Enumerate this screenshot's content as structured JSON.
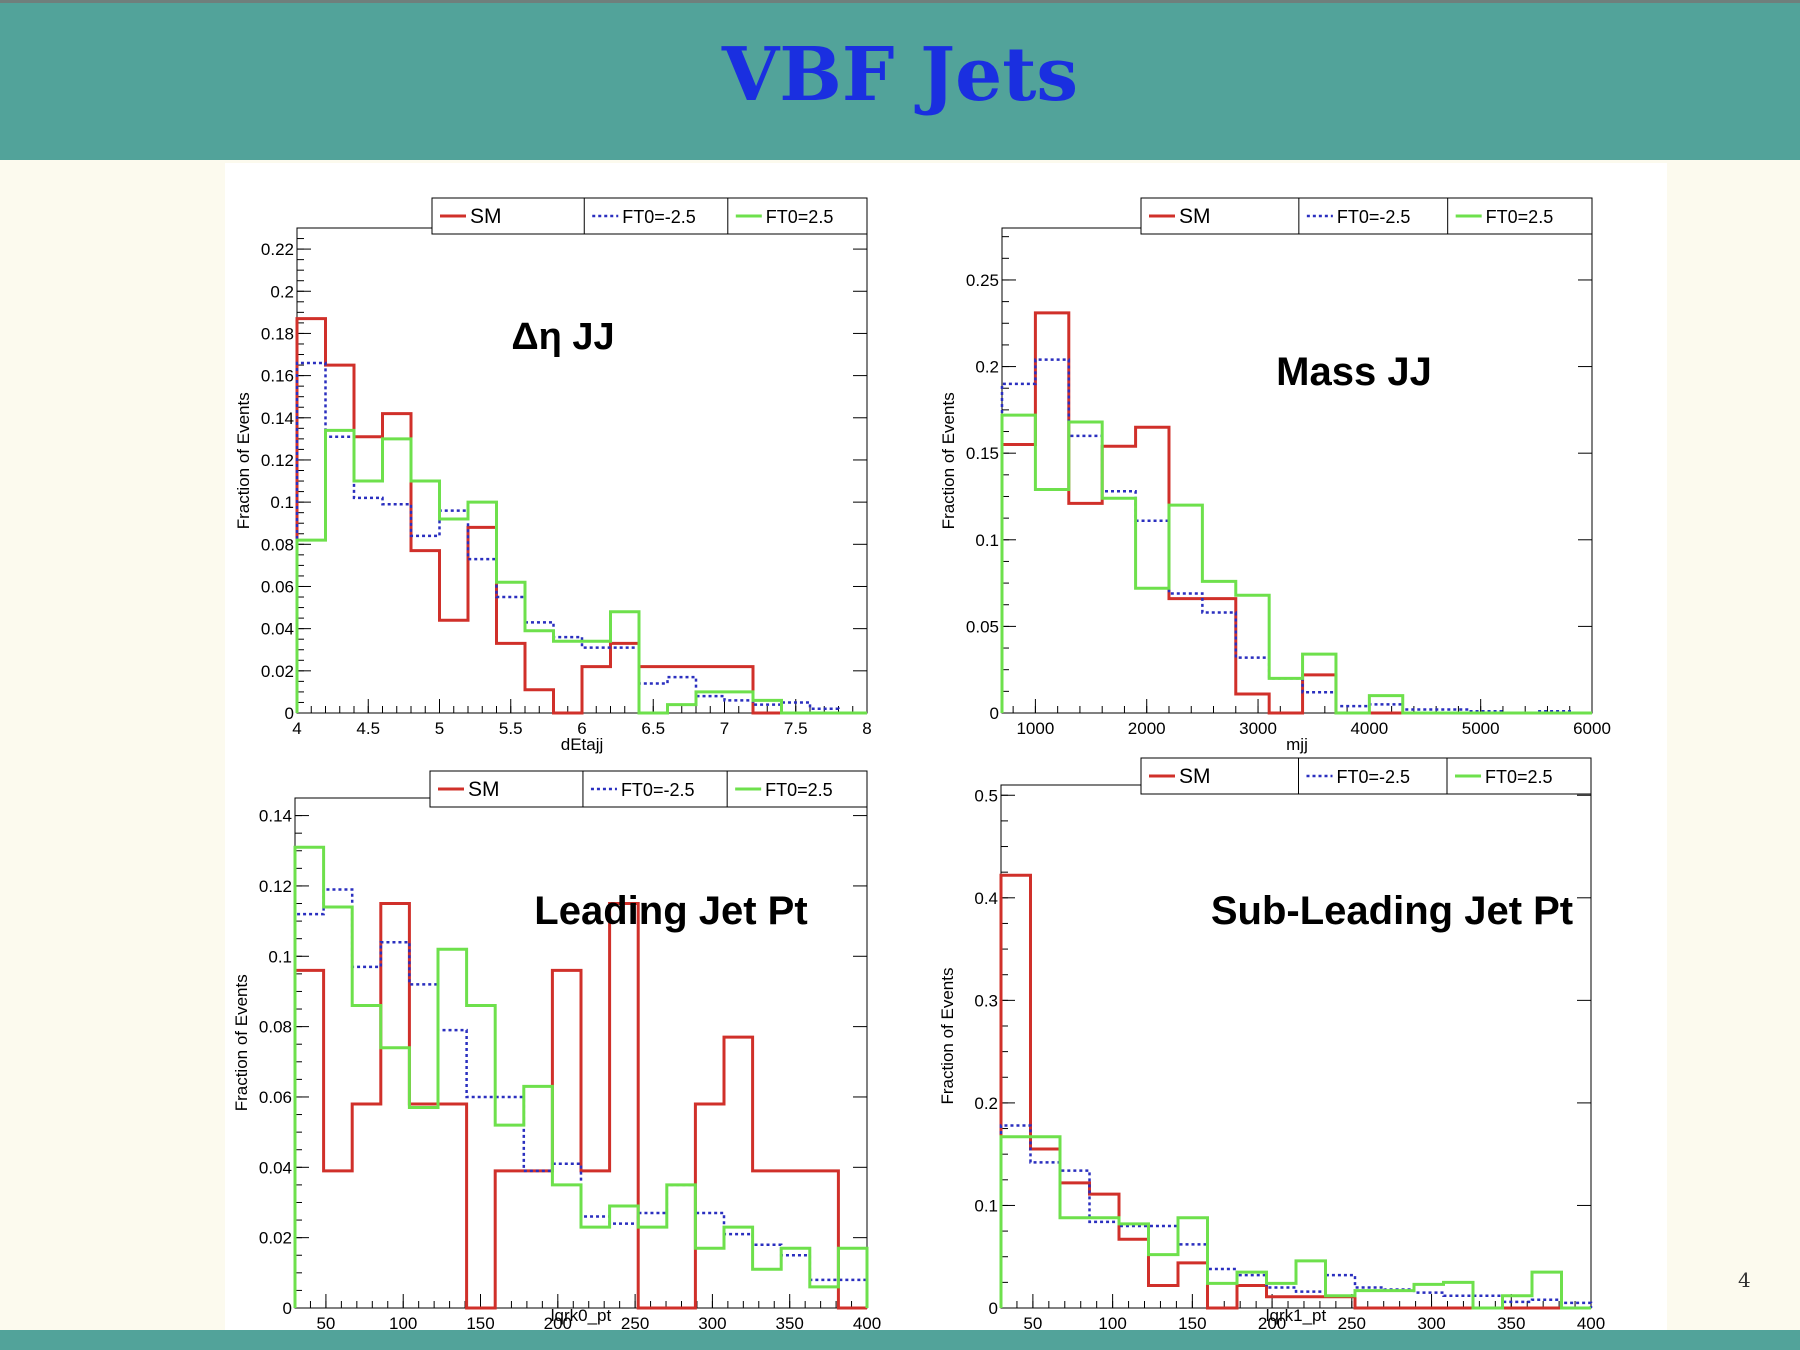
{
  "slide": {
    "title": "VBF Jets",
    "page_number": "4"
  },
  "legend_labels": [
    "SM",
    "FT0=-2.5",
    "FT0=2.5"
  ],
  "colors": {
    "SM": "#d0302a",
    "FT0=-2.5": "#2a2fbf",
    "FT0=2.5": "#6ee04c",
    "banner": "#52a39a",
    "title": "#1a2fe0"
  },
  "chart_data": [
    {
      "type": "line",
      "title": "Δη JJ",
      "xlabel": "dEtajj",
      "ylabel": "Fraction of Events",
      "xlim": [
        4,
        8
      ],
      "ylim": [
        0,
        0.23
      ],
      "xticks": [
        "4",
        "4.5",
        "5",
        "5.5",
        "6",
        "6.5",
        "7",
        "7.5",
        "8"
      ],
      "yticks": [
        "0",
        "0.02",
        "0.04",
        "0.06",
        "0.08",
        "0.1",
        "0.12",
        "0.14",
        "0.16",
        "0.18",
        "0.2",
        "0.22"
      ],
      "bin_edges": [
        4,
        4.2,
        4.4,
        4.6,
        4.8,
        5,
        5.2,
        5.4,
        5.6,
        5.8,
        6,
        6.2,
        6.4,
        6.6,
        6.8,
        7,
        7.2,
        7.4,
        7.6,
        7.8,
        8
      ],
      "series": [
        {
          "name": "SM",
          "values": [
            0.187,
            0.165,
            0.131,
            0.142,
            0.077,
            0.044,
            0.088,
            0.033,
            0.011,
            0,
            0.022,
            0.033,
            0.022,
            0.022,
            0.022,
            0.022,
            0,
            0,
            0,
            0
          ]
        },
        {
          "name": "FT0=-2.5",
          "values": [
            0.166,
            0.131,
            0.102,
            0.099,
            0.084,
            0.096,
            0.073,
            0.055,
            0.043,
            0.036,
            0.031,
            0.031,
            0.014,
            0.017,
            0.008,
            0.006,
            0.004,
            0.005,
            0.002,
            0
          ]
        },
        {
          "name": "FT0=2.5",
          "values": [
            0.082,
            0.134,
            0.11,
            0.13,
            0.11,
            0.092,
            0.1,
            0.062,
            0.039,
            0.034,
            0.034,
            0.048,
            0,
            0.004,
            0.01,
            0.01,
            0.006,
            0,
            0,
            0
          ]
        }
      ]
    },
    {
      "type": "line",
      "title": "Mass JJ",
      "xlabel": "mjj",
      "ylabel": "Fraction of Events",
      "xlim": [
        700,
        6000
      ],
      "ylim": [
        0,
        0.28
      ],
      "xticks": [
        "1000",
        "2000",
        "3000",
        "4000",
        "5000",
        "6000"
      ],
      "yticks": [
        "0",
        "0.05",
        "0.1",
        "0.15",
        "0.2",
        "0.25"
      ],
      "bin_edges": [
        700,
        1000,
        1300,
        1600,
        1900,
        2200,
        2500,
        2800,
        3100,
        3400,
        3700,
        4000,
        4300,
        4600,
        4900,
        5200,
        5500,
        5800,
        6000
      ],
      "series": [
        {
          "name": "SM",
          "values": [
            0.155,
            0.231,
            0.121,
            0.154,
            0.165,
            0.066,
            0.066,
            0.011,
            0,
            0.022,
            0,
            0,
            0,
            0,
            0,
            0,
            0,
            0
          ]
        },
        {
          "name": "FT0=-2.5",
          "values": [
            0.19,
            0.204,
            0.16,
            0.128,
            0.111,
            0.069,
            0.058,
            0.032,
            0.02,
            0.012,
            0.004,
            0.005,
            0.002,
            0.002,
            0.001,
            0,
            0.001,
            0
          ]
        },
        {
          "name": "FT0=2.5",
          "values": [
            0.172,
            0.129,
            0.168,
            0.124,
            0.072,
            0.12,
            0.076,
            0.068,
            0.02,
            0.034,
            0,
            0.01,
            0,
            0,
            0,
            0,
            0,
            0
          ]
        }
      ]
    },
    {
      "type": "line",
      "title": "Leading Jet Pt",
      "xlabel": "lqrk0_pt",
      "ylabel": "Fraction of Events",
      "xlim": [
        30,
        400
      ],
      "ylim": [
        0,
        0.145
      ],
      "xticks": [
        "50",
        "100",
        "150",
        "200",
        "250",
        "300",
        "350",
        "400"
      ],
      "yticks": [
        "0",
        "0.02",
        "0.04",
        "0.06",
        "0.08",
        "0.1",
        "0.12",
        "0.14"
      ],
      "bin_edges": [
        30,
        48.5,
        67,
        85.5,
        104,
        122.5,
        141,
        159.5,
        178,
        196.5,
        215,
        233.5,
        252,
        270.5,
        289,
        307.5,
        326,
        344.5,
        363,
        381.5,
        400
      ],
      "series": [
        {
          "name": "SM",
          "values": [
            0.096,
            0.039,
            0.058,
            0.115,
            0.058,
            0.058,
            0,
            0.039,
            0.039,
            0.096,
            0.039,
            0.115,
            0,
            0,
            0.058,
            0.077,
            0.039,
            0.039,
            0.039,
            0
          ]
        },
        {
          "name": "FT0=-2.5",
          "values": [
            0.112,
            0.119,
            0.097,
            0.104,
            0.092,
            0.079,
            0.06,
            0.06,
            0.039,
            0.041,
            0.026,
            0.024,
            0.027,
            0.035,
            0.027,
            0.021,
            0.018,
            0.015,
            0.008,
            0.008
          ]
        },
        {
          "name": "FT0=2.5",
          "values": [
            0.131,
            0.114,
            0.086,
            0.074,
            0.057,
            0.102,
            0.086,
            0.052,
            0.063,
            0.035,
            0.023,
            0.029,
            0.023,
            0.035,
            0.017,
            0.023,
            0.011,
            0.017,
            0.006,
            0.017
          ]
        }
      ]
    },
    {
      "type": "line",
      "title": "Sub-Leading Jet Pt",
      "xlabel": "lqrk1_pt",
      "ylabel": "Fraction of Events",
      "xlim": [
        30,
        400
      ],
      "ylim": [
        0,
        0.51
      ],
      "xticks": [
        "50",
        "100",
        "150",
        "200",
        "250",
        "300",
        "350",
        "400"
      ],
      "yticks": [
        "0",
        "0.1",
        "0.2",
        "0.3",
        "0.4",
        "0.5"
      ],
      "bin_edges": [
        30,
        48.5,
        67,
        85.5,
        104,
        122.5,
        141,
        159.5,
        178,
        196.5,
        215,
        233.5,
        252,
        270.5,
        289,
        307.5,
        326,
        344.5,
        363,
        381.5,
        400
      ],
      "series": [
        {
          "name": "SM",
          "values": [
            0.422,
            0.155,
            0.122,
            0.111,
            0.067,
            0.022,
            0.044,
            0,
            0.022,
            0.011,
            0.011,
            0.011,
            0,
            0,
            0,
            0,
            0,
            0,
            0,
            0
          ]
        },
        {
          "name": "FT0=-2.5",
          "values": [
            0.178,
            0.142,
            0.134,
            0.084,
            0.08,
            0.08,
            0.062,
            0.038,
            0.032,
            0.02,
            0.016,
            0.032,
            0.02,
            0.018,
            0.015,
            0.012,
            0.012,
            0.006,
            0.008,
            0.005
          ]
        },
        {
          "name": "FT0=2.5",
          "values": [
            0.167,
            0.167,
            0.088,
            0.088,
            0.082,
            0.052,
            0.088,
            0.024,
            0.035,
            0.024,
            0.046,
            0.012,
            0.017,
            0.017,
            0.023,
            0.025,
            0,
            0.012,
            0.035,
            0
          ]
        }
      ]
    }
  ]
}
